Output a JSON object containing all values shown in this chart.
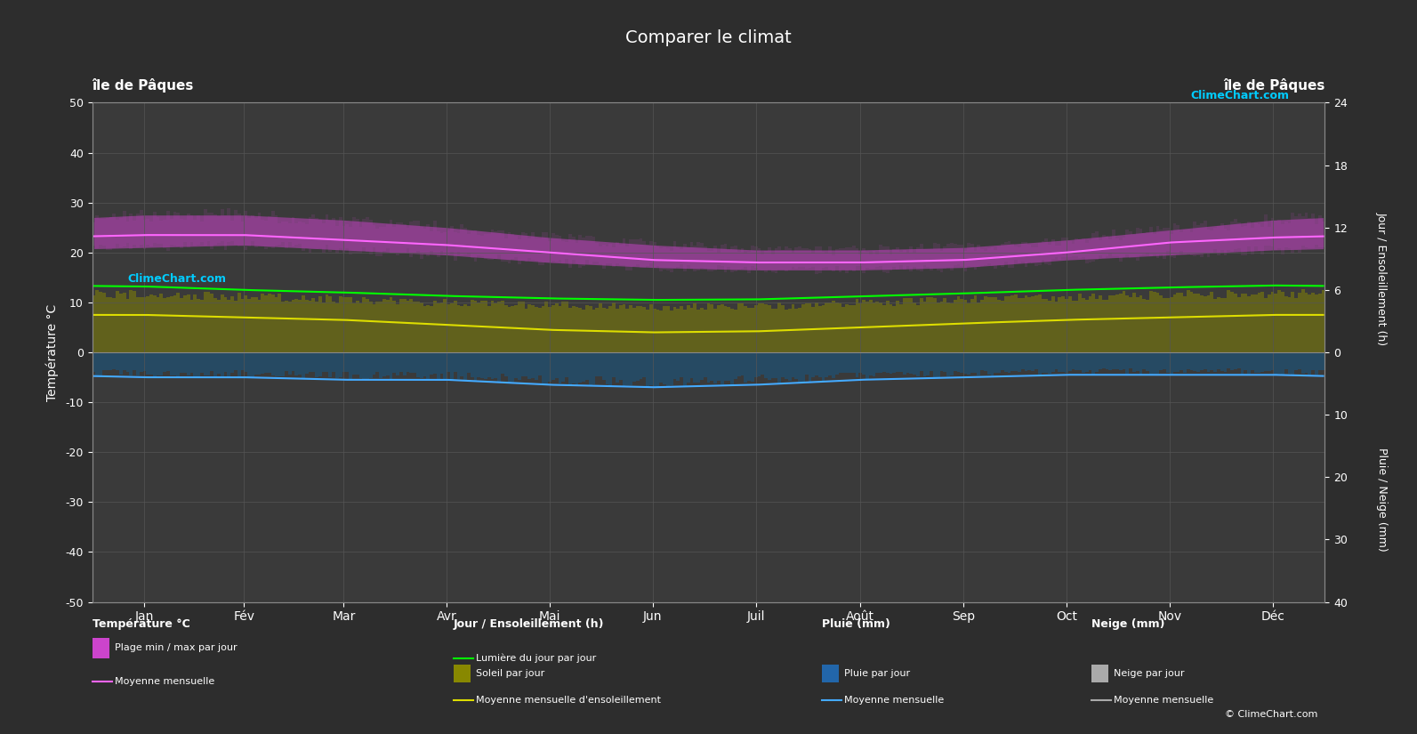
{
  "title": "Comparer le climat",
  "left_label_top": "île de Pâques",
  "right_label_top": "île de Pâques",
  "ylabel_left": "Température °C",
  "ylabel_right_top": "Jour / Ensoleillement (h)",
  "ylabel_right_bottom": "Pluie / Neige (mm)",
  "months": [
    "Jan",
    "Fév",
    "Mar",
    "Avr",
    "Mai",
    "Jun",
    "Juil",
    "Août",
    "Sep",
    "Oct",
    "Nov",
    "Déc"
  ],
  "ylim_left": [
    -50,
    50
  ],
  "ylim_right": [
    -40,
    24
  ],
  "background_color": "#2d2d2d",
  "plot_bg_color": "#3a3a3a",
  "grid_color": "#555555",
  "temp_max_monthly": [
    27.5,
    27.5,
    26.5,
    25.0,
    23.0,
    21.5,
    20.5,
    20.5,
    21.0,
    22.5,
    24.5,
    26.5
  ],
  "temp_min_monthly": [
    21.0,
    21.5,
    20.5,
    19.5,
    18.0,
    17.0,
    16.5,
    16.5,
    17.0,
    18.5,
    19.5,
    20.5
  ],
  "temp_mean_monthly": [
    23.5,
    23.5,
    22.5,
    21.5,
    20.0,
    18.5,
    18.0,
    18.0,
    18.5,
    20.0,
    22.0,
    23.0
  ],
  "daylight_monthly": [
    13.2,
    12.5,
    12.0,
    11.3,
    10.8,
    10.5,
    10.6,
    11.2,
    11.8,
    12.5,
    13.0,
    13.4
  ],
  "sunshine_monthly": [
    12.5,
    12.0,
    11.5,
    10.8,
    10.2,
    9.8,
    9.9,
    10.7,
    11.3,
    12.0,
    12.5,
    12.8
  ],
  "sunshine_mean_monthly": [
    7.5,
    7.0,
    6.5,
    5.5,
    4.5,
    4.0,
    4.2,
    5.0,
    5.8,
    6.5,
    7.0,
    7.5
  ],
  "rain_monthly_mean": [
    -5.0,
    -5.0,
    -5.5,
    -5.5,
    -6.5,
    -7.0,
    -6.5,
    -5.5,
    -5.0,
    -4.5,
    -4.5,
    -4.5
  ],
  "color_temp_band": "#cc44cc",
  "color_daylight": "#00ff00",
  "color_sunshine_bar": "#aaaa00",
  "color_sunshine_mean": "#dddd00",
  "color_temp_mean": "#ff66ff",
  "color_rain_bar": "#2266aa",
  "color_rain_mean": "#44aaff",
  "n_days": 365
}
